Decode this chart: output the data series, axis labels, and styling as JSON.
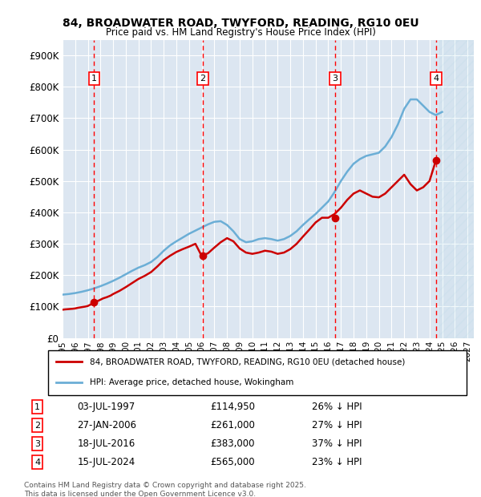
{
  "title1": "84, BROADWATER ROAD, TWYFORD, READING, RG10 0EU",
  "title2": "Price paid vs. HM Land Registry's House Price Index (HPI)",
  "xlabel": "",
  "ylabel": "",
  "ylim": [
    0,
    950000
  ],
  "xlim_start": 1995.0,
  "xlim_end": 2027.5,
  "yticks": [
    0,
    100000,
    200000,
    300000,
    400000,
    500000,
    600000,
    700000,
    800000,
    900000
  ],
  "ytick_labels": [
    "£0",
    "£100K",
    "£200K",
    "£300K",
    "£400K",
    "£500K",
    "£600K",
    "£700K",
    "£800K",
    "£900K"
  ],
  "xticks": [
    1995,
    1996,
    1997,
    1998,
    1999,
    2000,
    2001,
    2002,
    2003,
    2004,
    2005,
    2006,
    2007,
    2008,
    2009,
    2010,
    2011,
    2012,
    2013,
    2014,
    2015,
    2016,
    2017,
    2018,
    2019,
    2020,
    2021,
    2022,
    2023,
    2024,
    2025,
    2026,
    2027
  ],
  "bg_color": "#dce6f1",
  "plot_bg_color": "#dce6f1",
  "grid_color": "#ffffff",
  "hpi_color": "#6baed6",
  "price_color": "#cc0000",
  "marker_color": "#cc0000",
  "legend_box_color": "#ffffff",
  "sale_dates": [
    1997.5,
    2006.07,
    2016.54,
    2024.54
  ],
  "sale_prices": [
    114950,
    261000,
    383000,
    565000
  ],
  "sale_labels": [
    "1",
    "2",
    "3",
    "4"
  ],
  "sale_label_date": "03-JUL-1997",
  "transactions": [
    {
      "num": "1",
      "date": "03-JUL-1997",
      "price": "£114,950",
      "pct": "26% ↓ HPI"
    },
    {
      "num": "2",
      "date": "27-JAN-2006",
      "price": "£261,000",
      "pct": "27% ↓ HPI"
    },
    {
      "num": "3",
      "date": "18-JUL-2016",
      "price": "£383,000",
      "pct": "37% ↓ HPI"
    },
    {
      "num": "4",
      "date": "15-JUL-2024",
      "price": "£565,000",
      "pct": "23% ↓ HPI"
    }
  ],
  "legend_line1": "84, BROADWATER ROAD, TWYFORD, READING, RG10 0EU (detached house)",
  "legend_line2": "HPI: Average price, detached house, Wokingham",
  "footnote": "Contains HM Land Registry data © Crown copyright and database right 2025.\nThis data is licensed under the Open Government Licence v3.0.",
  "hpi_x": [
    1995,
    1995.5,
    1996,
    1996.5,
    1997,
    1997.5,
    1998,
    1998.5,
    1999,
    1999.5,
    2000,
    2000.5,
    2001,
    2001.5,
    2002,
    2002.5,
    2003,
    2003.5,
    2004,
    2004.5,
    2005,
    2005.5,
    2006,
    2006.5,
    2007,
    2007.5,
    2008,
    2008.5,
    2009,
    2009.5,
    2010,
    2010.5,
    2011,
    2011.5,
    2012,
    2012.5,
    2013,
    2013.5,
    2014,
    2014.5,
    2015,
    2015.5,
    2016,
    2016.5,
    2017,
    2017.5,
    2018,
    2018.5,
    2019,
    2019.5,
    2020,
    2020.5,
    2021,
    2021.5,
    2022,
    2022.5,
    2023,
    2023.5,
    2024,
    2024.5,
    2025
  ],
  "hpi_y": [
    138000,
    140000,
    143000,
    147000,
    152000,
    158000,
    165000,
    173000,
    182000,
    192000,
    203000,
    214000,
    224000,
    232000,
    242000,
    258000,
    278000,
    295000,
    308000,
    320000,
    332000,
    342000,
    352000,
    362000,
    370000,
    372000,
    360000,
    340000,
    315000,
    305000,
    308000,
    315000,
    318000,
    315000,
    310000,
    315000,
    325000,
    340000,
    360000,
    378000,
    395000,
    415000,
    435000,
    465000,
    500000,
    530000,
    555000,
    570000,
    580000,
    585000,
    590000,
    610000,
    640000,
    680000,
    730000,
    760000,
    760000,
    740000,
    720000,
    710000,
    720000
  ],
  "price_x": [
    1995,
    1995.2,
    1995.5,
    1995.8,
    1996,
    1996.2,
    1996.5,
    1996.8,
    1997,
    1997.2,
    1997.5,
    1997.8,
    1998,
    1998.2,
    1998.5,
    1998.8,
    1999,
    1999.5,
    2000,
    2000.5,
    2001,
    2001.5,
    2002,
    2002.5,
    2003,
    2003.5,
    2004,
    2004.5,
    2005,
    2005.5,
    2006,
    2006.5,
    2007,
    2007.5,
    2008,
    2008.5,
    2009,
    2009.5,
    2010,
    2010.5,
    2011,
    2011.5,
    2012,
    2012.5,
    2013,
    2013.5,
    2014,
    2014.5,
    2015,
    2015.5,
    2016,
    2016.5,
    2017,
    2017.5,
    2018,
    2018.5,
    2019,
    2019.5,
    2020,
    2020.5,
    2021,
    2021.5,
    2022,
    2022.5,
    2023,
    2023.5,
    2024,
    2024.5
  ],
  "price_y": [
    90000,
    91000,
    92000,
    93000,
    94000,
    96000,
    98000,
    100000,
    102000,
    106000,
    114950,
    118000,
    122000,
    126000,
    130000,
    135000,
    140000,
    150000,
    162000,
    175000,
    188000,
    198000,
    210000,
    228000,
    248000,
    262000,
    274000,
    283000,
    291000,
    300000,
    261000,
    270000,
    288000,
    305000,
    318000,
    308000,
    285000,
    272000,
    268000,
    272000,
    278000,
    275000,
    268000,
    272000,
    283000,
    300000,
    323000,
    345000,
    368000,
    383000,
    383000,
    395000,
    415000,
    440000,
    460000,
    470000,
    460000,
    450000,
    448000,
    460000,
    480000,
    500000,
    520000,
    490000,
    470000,
    480000,
    500000,
    565000
  ]
}
